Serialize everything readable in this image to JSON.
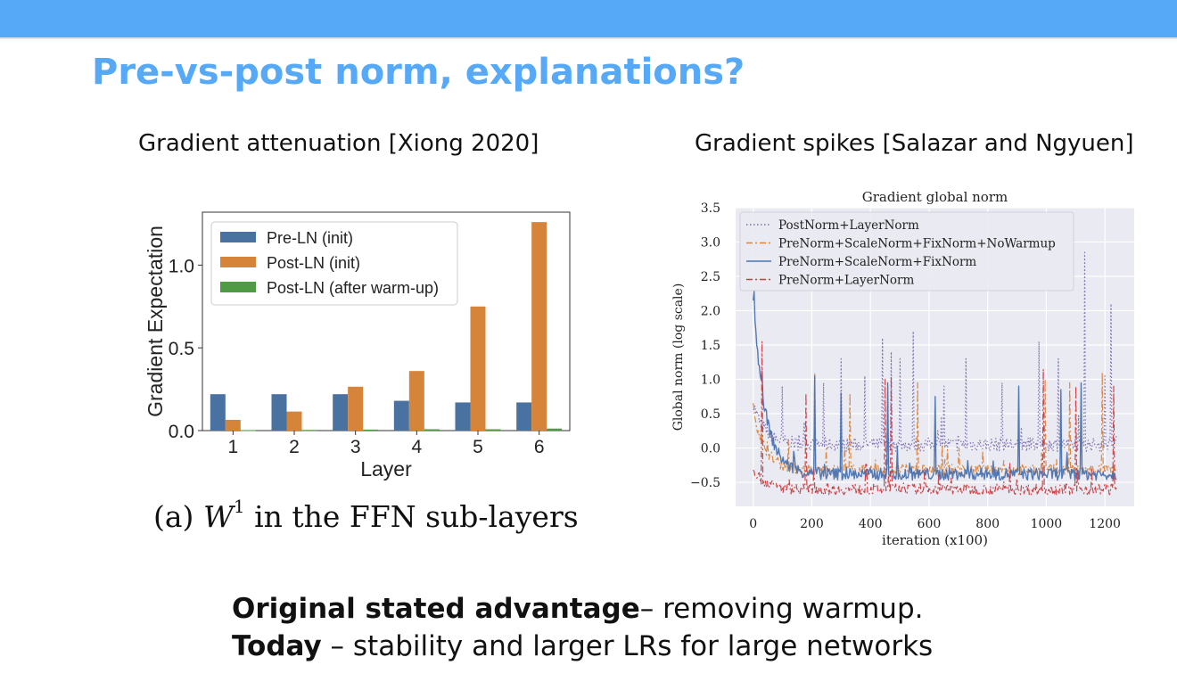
{
  "slide": {
    "title": "Pre-vs-post norm, explanations?",
    "left_caption": "Gradient attenuation [Xiong 2020]",
    "right_caption": "Gradient spikes [Salazar and Ngyuen]",
    "ffn_caption": {
      "prefix": "(a)",
      "math_var": "W",
      "math_sup": "1",
      "suffix": "in the FFN sub-layers"
    },
    "bottom": {
      "line1_bold": "Original stated advantage",
      "line1_rest": "– removing warmup.",
      "line2_bold": "Today",
      "line2_rest": " – stability and larger LRs for large networks"
    },
    "colors": {
      "accent": "#56a9f7"
    }
  },
  "chart_data": [
    {
      "type": "bar",
      "title": "",
      "xlabel": "Layer",
      "ylabel": "Gradient Expectation",
      "categories": [
        "1",
        "2",
        "3",
        "4",
        "5",
        "6"
      ],
      "yticks": [
        "0.0",
        "0.5",
        "1.0"
      ],
      "ylim": [
        0,
        1.32
      ],
      "legend_position": "top-left",
      "series": [
        {
          "name": "Pre-LN (init)",
          "color": "#4a72a0",
          "values": [
            0.22,
            0.22,
            0.22,
            0.18,
            0.17,
            0.17
          ]
        },
        {
          "name": "Post-LN (init)",
          "color": "#d5843a",
          "values": [
            0.065,
            0.115,
            0.265,
            0.36,
            0.75,
            1.26
          ]
        },
        {
          "name": "Post-LN (after warm-up)",
          "color": "#4e9a45",
          "values": [
            0.003,
            0.004,
            0.006,
            0.008,
            0.008,
            0.012
          ]
        }
      ]
    },
    {
      "type": "line",
      "title": "Gradient global norm",
      "xlabel": "iteration (x100)",
      "ylabel": "Global norm (log scale)",
      "xticks": [
        "0",
        "200",
        "400",
        "600",
        "800",
        "1000",
        "1200"
      ],
      "yticks": [
        "−0.5",
        "0.0",
        "0.5",
        "1.0",
        "1.5",
        "2.0",
        "2.5",
        "3.0",
        "3.5"
      ],
      "xlim": [
        -60,
        1300
      ],
      "ylim": [
        -0.85,
        3.5
      ],
      "legend_position": "top-left",
      "grid": true,
      "series": [
        {
          "name": "PostNorm+LayerNorm",
          "color": "#7a6bb0",
          "style": "dotted",
          "baseline": 0.05,
          "noise": 0.1,
          "spikes": [
            [
              100,
              0.9
            ],
            [
              240,
              0.95
            ],
            [
              300,
              1.3
            ],
            [
              380,
              1.05
            ],
            [
              440,
              1.6
            ],
            [
              470,
              1.4
            ],
            [
              500,
              1.3
            ],
            [
              545,
              1.7
            ],
            [
              650,
              0.9
            ],
            [
              725,
              1.3
            ],
            [
              850,
              0.95
            ],
            [
              975,
              1.55
            ],
            [
              1040,
              1.3
            ],
            [
              1130,
              2.85
            ],
            [
              1200,
              1.05
            ],
            [
              1222,
              2.1
            ]
          ]
        },
        {
          "name": "PreNorm+ScaleNorm+FixNorm+NoWarmup",
          "color": "#d8843c",
          "style": "dashdot",
          "baseline": -0.32,
          "noise": 0.08,
          "spikes": [
            [
              210,
              1.1
            ],
            [
              330,
              0.8
            ],
            [
              560,
              0.95
            ],
            [
              995,
              1.0
            ],
            [
              1080,
              0.95
            ],
            [
              1190,
              1.1
            ]
          ]
        },
        {
          "name": "PreNorm+ScaleNorm+FixNorm",
          "color": "#4a72b0",
          "style": "solid",
          "baseline": -0.38,
          "noise": 0.09,
          "spikes": [
            [
              210,
              1.05
            ],
            [
              300,
              0.8
            ],
            [
              460,
              0.95
            ],
            [
              620,
              0.75
            ],
            [
              905,
              0.9
            ],
            [
              1050,
              0.85
            ],
            [
              1120,
              0.95
            ]
          ]
        },
        {
          "name": "PreNorm+LayerNorm",
          "color": "#c93d3f",
          "style": "dashdot",
          "baseline": -0.6,
          "noise": 0.08,
          "spikes": [
            [
              30,
              1.55
            ],
            [
              180,
              0.8
            ],
            [
              450,
              1.0
            ],
            [
              470,
              1.05
            ],
            [
              990,
              1.15
            ],
            [
              1100,
              0.9
            ],
            [
              1230,
              0.9
            ]
          ]
        }
      ]
    }
  ]
}
